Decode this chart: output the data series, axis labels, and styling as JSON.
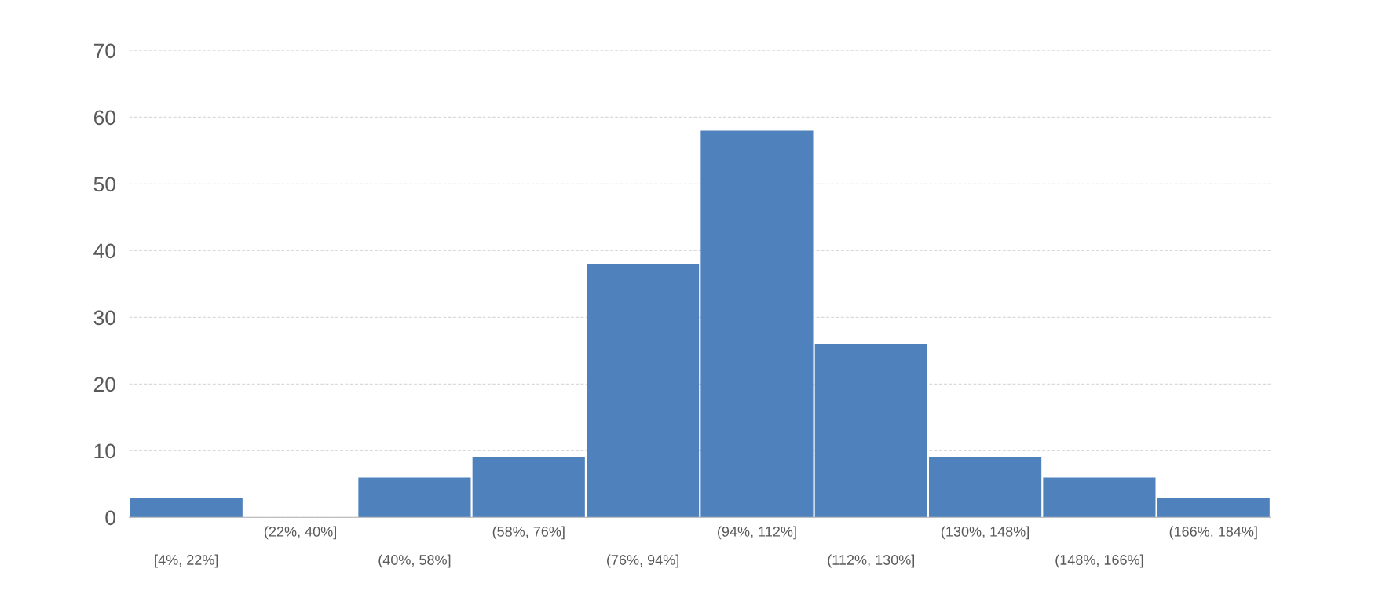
{
  "chart_data": {
    "type": "bar",
    "categories": [
      "[4%, 22%]",
      "(22%, 40%]",
      "(40%, 58%]",
      "(58%, 76%]",
      "(76%, 94%]",
      "(94%, 112%]",
      "(112%, 130%]",
      "(130%, 148%]",
      "(148%, 166%]",
      "(166%, 184%]"
    ],
    "values": [
      3,
      0,
      6,
      9,
      38,
      58,
      26,
      9,
      6,
      3
    ],
    "color": "#4f81bd",
    "ylim": [
      0,
      70
    ],
    "yticks": [
      0,
      10,
      20,
      30,
      40,
      50,
      60,
      70
    ],
    "grid": "y",
    "legend": false
  }
}
